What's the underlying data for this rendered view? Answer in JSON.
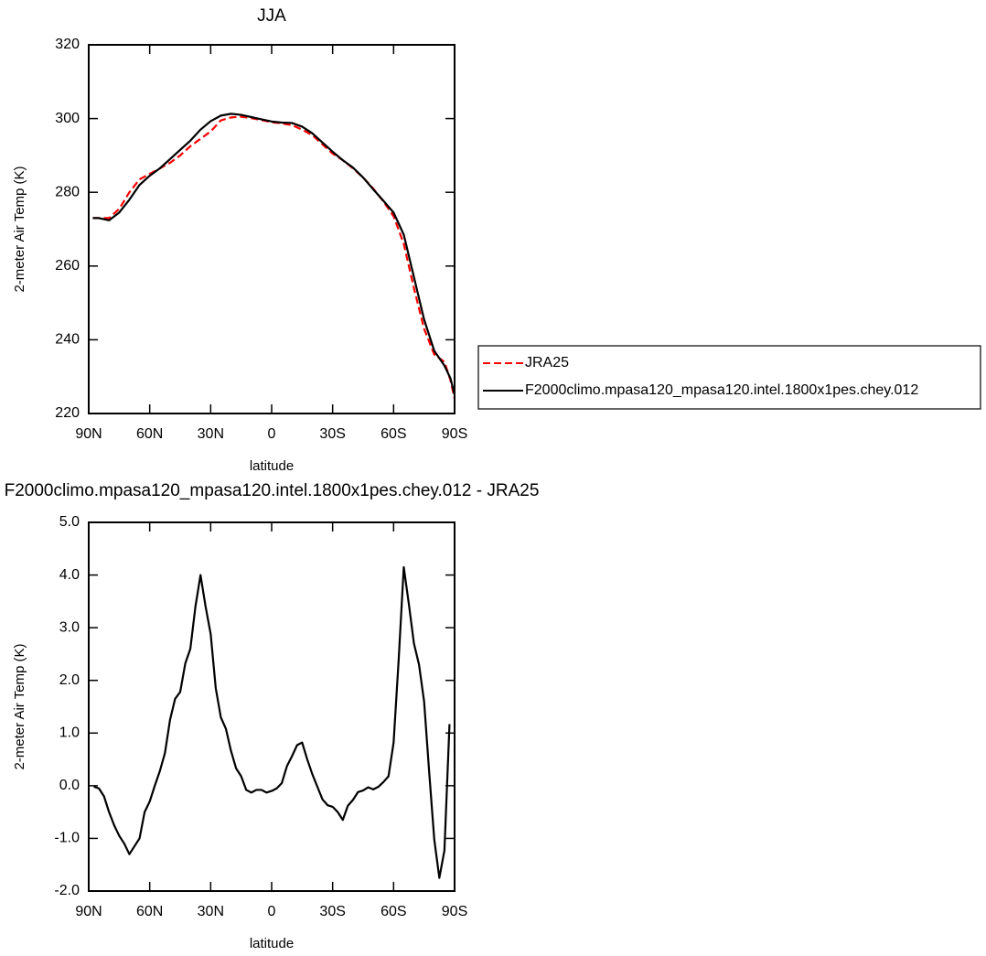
{
  "chart_data": [
    {
      "type": "line",
      "title": "JJA",
      "x_label": "latitude",
      "y_label": "2-meter Air Temp (K)",
      "x": [
        88,
        85,
        80,
        75,
        70,
        65,
        60,
        55,
        50,
        45,
        40,
        35,
        30,
        25,
        20,
        15,
        10,
        5,
        0,
        -5,
        -10,
        -15,
        -20,
        -25,
        -30,
        -35,
        -40,
        -45,
        -50,
        -55,
        -60,
        -65,
        -70,
        -75,
        -80,
        -85,
        -88,
        -90
      ],
      "series": [
        {
          "name": "JRA25",
          "color": "#ff0000",
          "dashed": true,
          "values": [
            273,
            273,
            273,
            275.5,
            280,
            283.5,
            285,
            286.5,
            288,
            290,
            292.5,
            294.5,
            296.5,
            299.5,
            300.3,
            300.5,
            300.1,
            299.6,
            299,
            298.7,
            298.2,
            297,
            295.5,
            293,
            290.5,
            288.7,
            286.5,
            284,
            281,
            277.5,
            273.5,
            266,
            254,
            243,
            236,
            234,
            229,
            224
          ]
        },
        {
          "name": "F2000climo.mpasa120_mpasa120.intel.1800x1pes.chey.012",
          "color": "#000000",
          "dashed": false,
          "values": [
            273,
            273,
            272.4,
            274.5,
            278,
            282,
            284.5,
            286.5,
            289,
            291.5,
            294,
            297,
            299.3,
            300.8,
            301.3,
            301,
            300.4,
            299.8,
            299.2,
            298.9,
            298.8,
            297.8,
            296,
            293.5,
            291,
            288.7,
            286.7,
            284,
            280.8,
            277.7,
            274.5,
            268.5,
            257,
            245.5,
            237,
            233,
            229.5,
            225
          ]
        }
      ],
      "xlim": [
        90,
        -90
      ],
      "xticks": [
        {
          "value": 90,
          "label": "90N"
        },
        {
          "value": 60,
          "label": "60N"
        },
        {
          "value": 30,
          "label": "30N"
        },
        0,
        {
          "value": -30,
          "label": "30S"
        },
        {
          "value": -60,
          "label": "60S"
        },
        {
          "value": -90,
          "label": "90S"
        }
      ],
      "ylim": [
        220,
        320
      ],
      "yticks": [
        220,
        240,
        260,
        280,
        300,
        320
      ],
      "legend_position": "right"
    },
    {
      "type": "line",
      "title": "F2000climo.mpasa120_mpasa120.intel.1800x1pes.chey.012 - JRA25",
      "x_label": "latitude",
      "y_label": "2-meter Air Temp (K)",
      "x": [
        87.5,
        85,
        82.5,
        80,
        77.5,
        75,
        72.5,
        70,
        67.5,
        65,
        62.5,
        60,
        57.5,
        55,
        52.5,
        50,
        47.5,
        45,
        42.5,
        40,
        37.5,
        35,
        32.5,
        30,
        27.5,
        25,
        22.5,
        20,
        17.5,
        15,
        12.5,
        10,
        7.5,
        5,
        2.5,
        0,
        -2.5,
        -5,
        -7.5,
        -10,
        -12.5,
        -15,
        -17.5,
        -20,
        -22.5,
        -25,
        -27.5,
        -30,
        -32.5,
        -35,
        -37.5,
        -40,
        -42.5,
        -45,
        -47.5,
        -50,
        -52.5,
        -55,
        -57.5,
        -60,
        -62.5,
        -65,
        -67.5,
        -70,
        -72.5,
        -75,
        -77.5,
        -80,
        -82.5,
        -85,
        -87.5
      ],
      "series": [
        {
          "color": "#000000",
          "dashed": false,
          "values": [
            -0.02,
            -0.05,
            -0.2,
            -0.5,
            -0.75,
            -0.95,
            -1.1,
            -1.3,
            -1.15,
            -1.0,
            -0.5,
            -0.3,
            0.0,
            0.28,
            0.62,
            1.25,
            1.65,
            1.78,
            2.32,
            2.6,
            3.4,
            4.0,
            3.4,
            2.88,
            1.85,
            1.3,
            1.08,
            0.66,
            0.33,
            0.18,
            -0.08,
            -0.13,
            -0.08,
            -0.08,
            -0.13,
            -0.1,
            -0.05,
            0.05,
            0.37,
            0.56,
            0.77,
            0.82,
            0.5,
            0.22,
            -0.02,
            -0.26,
            -0.37,
            -0.4,
            -0.5,
            -0.65,
            -0.38,
            -0.27,
            -0.12,
            -0.09,
            -0.03,
            -0.07,
            -0.02,
            0.07,
            0.18,
            0.82,
            2.4,
            4.15,
            3.45,
            2.7,
            2.3,
            1.6,
            0.26,
            -1.02,
            -1.75,
            -1.23,
            1.17
          ]
        }
      ],
      "xlim": [
        90,
        -90
      ],
      "xticks": [
        {
          "value": 90,
          "label": "90N"
        },
        {
          "value": 60,
          "label": "60N"
        },
        {
          "value": 30,
          "label": "30N"
        },
        0,
        {
          "value": -30,
          "label": "30S"
        },
        {
          "value": -60,
          "label": "60S"
        },
        {
          "value": -90,
          "label": "90S"
        }
      ],
      "ylim": [
        -2,
        5
      ],
      "yticks": [
        {
          "value": -2,
          "label": "-2.0"
        },
        {
          "value": -1,
          "label": "-1.0"
        },
        {
          "value": 0,
          "label": "0.0"
        },
        {
          "value": 1,
          "label": "1.0"
        },
        {
          "value": 2,
          "label": "2.0"
        },
        {
          "value": 3,
          "label": "3.0"
        },
        {
          "value": 4,
          "label": "4.0"
        },
        {
          "value": 5,
          "label": "5.0"
        }
      ]
    }
  ]
}
